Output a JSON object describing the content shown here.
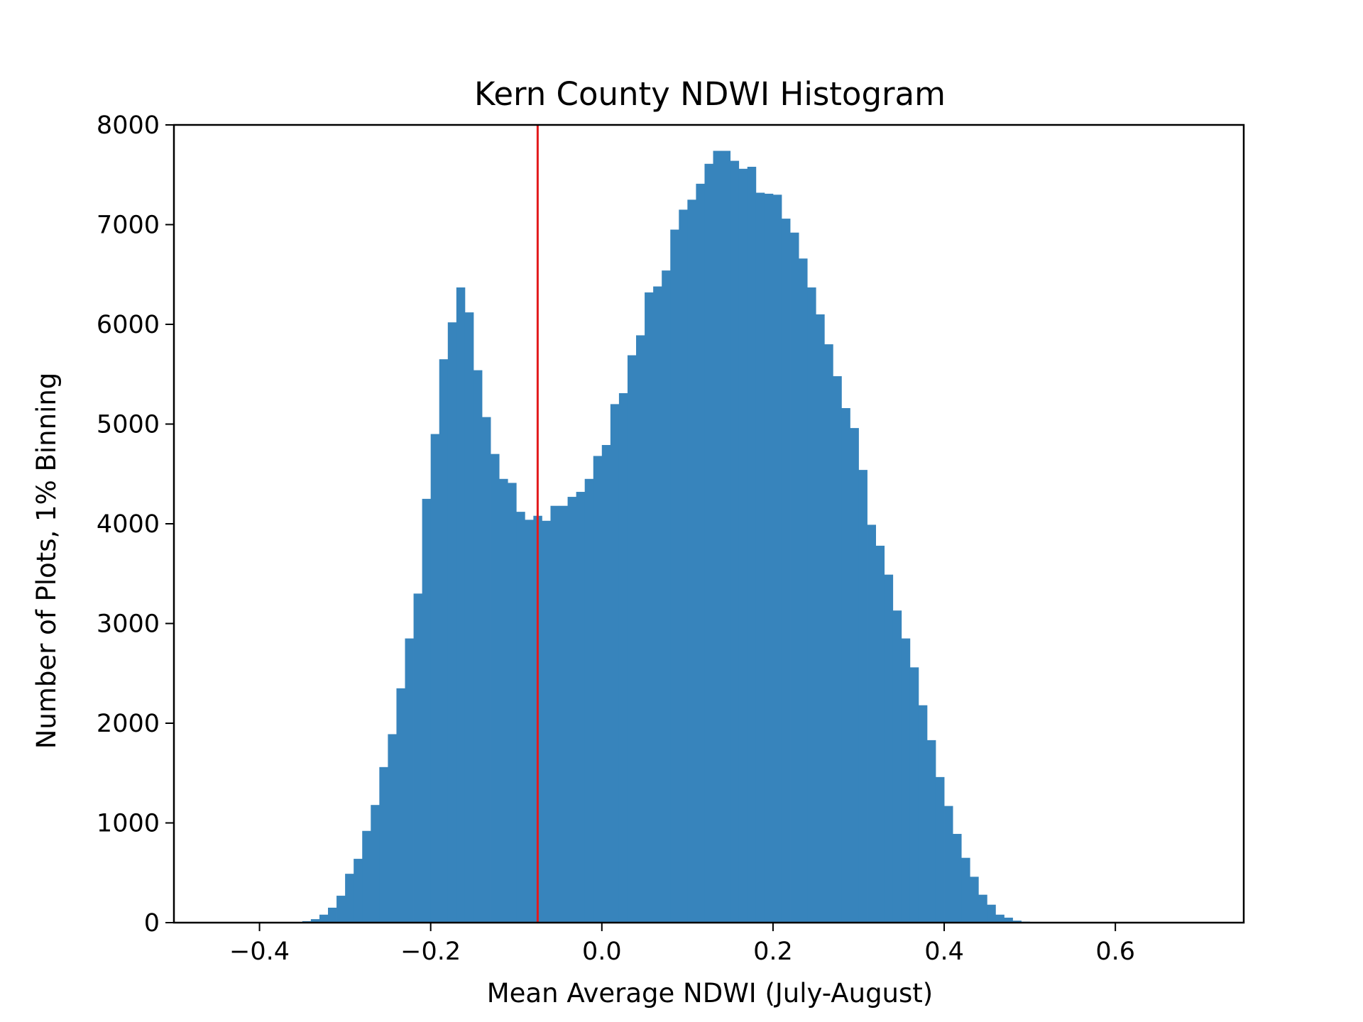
{
  "chart_data": {
    "type": "bar",
    "title": "Kern County NDWI Histogram",
    "xlabel": "Mean Average NDWI (July-August)",
    "ylabel": "Number of Plots, 1% Binning",
    "xlim": [
      -0.5,
      0.75
    ],
    "ylim": [
      0,
      8000
    ],
    "xticks": [
      -0.4,
      -0.2,
      0.0,
      0.2,
      0.4,
      0.6
    ],
    "xtick_labels": [
      "−0.4",
      "−0.2",
      "0.0",
      "0.2",
      "0.4",
      "0.6"
    ],
    "yticks": [
      0,
      1000,
      2000,
      3000,
      4000,
      5000,
      6000,
      7000,
      8000
    ],
    "ytick_labels": [
      "0",
      "1000",
      "2000",
      "3000",
      "4000",
      "5000",
      "6000",
      "7000",
      "8000"
    ],
    "bin_start": -0.36,
    "bin_width": 0.01,
    "bar_color": "#3784bc",
    "values": [
      5,
      15,
      35,
      80,
      150,
      270,
      490,
      640,
      920,
      1180,
      1560,
      1890,
      2350,
      2850,
      3300,
      4250,
      4900,
      5650,
      6020,
      6370,
      6120,
      5540,
      5070,
      4700,
      4450,
      4410,
      4120,
      4040,
      4080,
      4030,
      4180,
      4180,
      4270,
      4320,
      4450,
      4680,
      4790,
      5200,
      5310,
      5690,
      5890,
      6320,
      6380,
      6540,
      6950,
      7150,
      7250,
      7410,
      7610,
      7740,
      7740,
      7640,
      7560,
      7580,
      7320,
      7310,
      7300,
      7060,
      6920,
      6660,
      6370,
      6100,
      5800,
      5480,
      5160,
      4960,
      4540,
      3990,
      3780,
      3490,
      3130,
      2850,
      2560,
      2180,
      1830,
      1460,
      1170,
      890,
      650,
      460,
      280,
      180,
      80,
      50,
      20,
      10
    ],
    "vline": {
      "x": -0.075,
      "color": "#e31a1c"
    },
    "grid": false,
    "legend": "none"
  }
}
